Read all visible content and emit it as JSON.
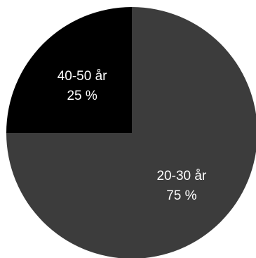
{
  "chart_data": {
    "type": "pie",
    "title": "",
    "slices": [
      {
        "label": "20-30 år",
        "value": 75,
        "value_label": "75 %",
        "color": "#3c3c3c"
      },
      {
        "label": "40-50 år",
        "value": 25,
        "value_label": "25 %",
        "color": "#000000"
      }
    ],
    "start_angle": "12 o'clock",
    "direction": "clockwise",
    "legend": "none"
  }
}
